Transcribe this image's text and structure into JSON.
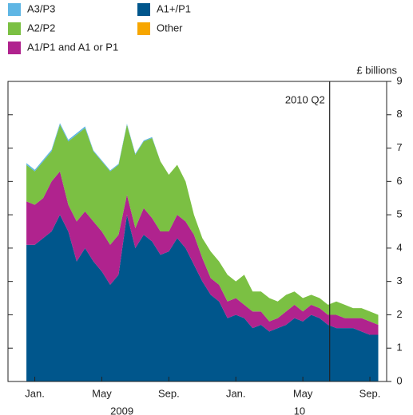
{
  "chart_data": {
    "type": "stacked_area",
    "y_axis_label": "£ billions",
    "x": [
      -0.5,
      0,
      0.5,
      1,
      1.5,
      2,
      2.5,
      3,
      3.5,
      4,
      4.5,
      5,
      5.5,
      6,
      6.5,
      7,
      7.5,
      8,
      8.5,
      9,
      9.5,
      10,
      10.5,
      11,
      11.5,
      12,
      12.5,
      13,
      13.5,
      14,
      14.5,
      15,
      15.5,
      16,
      16.5,
      17,
      17.5,
      18,
      18.5,
      19,
      19.5,
      20,
      20.5
    ],
    "series": [
      {
        "name": "A1+/P1",
        "color": "#00568c",
        "values": [
          4.1,
          4.1,
          4.3,
          4.5,
          5.0,
          4.5,
          3.6,
          4.0,
          3.6,
          3.3,
          2.9,
          3.2,
          5.0,
          4.0,
          4.4,
          4.2,
          3.8,
          3.9,
          4.3,
          4.0,
          3.5,
          3.0,
          2.6,
          2.4,
          1.9,
          2.0,
          1.9,
          1.6,
          1.7,
          1.5,
          1.6,
          1.7,
          1.9,
          1.8,
          2.0,
          1.9,
          1.7,
          1.6,
          1.6,
          1.6,
          1.5,
          1.4,
          1.4
        ]
      },
      {
        "name": "A1/P1 and A1 or P1",
        "color": "#b0238e",
        "values": [
          1.3,
          1.2,
          1.2,
          1.5,
          1.3,
          0.8,
          1.2,
          1.1,
          1.2,
          1.2,
          1.2,
          1.2,
          0.6,
          0.6,
          0.8,
          0.7,
          0.7,
          0.6,
          0.7,
          0.8,
          0.9,
          0.7,
          0.5,
          0.5,
          0.5,
          0.5,
          0.4,
          0.5,
          0.4,
          0.3,
          0.3,
          0.4,
          0.4,
          0.3,
          0.3,
          0.3,
          0.3,
          0.4,
          0.3,
          0.3,
          0.4,
          0.4,
          0.3
        ]
      },
      {
        "name": "A2/P2",
        "color": "#7bc043",
        "values": [
          1.1,
          1.0,
          1.1,
          0.9,
          1.4,
          1.9,
          2.6,
          2.5,
          2.1,
          2.1,
          2.2,
          2.1,
          2.1,
          2.2,
          2.0,
          2.4,
          2.1,
          1.7,
          1.5,
          1.2,
          0.6,
          0.6,
          0.8,
          0.7,
          0.8,
          0.5,
          0.9,
          0.6,
          0.6,
          0.7,
          0.5,
          0.5,
          0.4,
          0.4,
          0.3,
          0.3,
          0.3,
          0.4,
          0.4,
          0.3,
          0.3,
          0.3,
          0.3
        ]
      },
      {
        "name": "A3/P3",
        "color": "#5fb6e4",
        "values": [
          0.05,
          0.05,
          0.05,
          0.05,
          0.05,
          0.05,
          0.05,
          0.05,
          0.03,
          0.03,
          0.03,
          0.03,
          0.03,
          0.03,
          0.03,
          0.03,
          0,
          0,
          0,
          0,
          0,
          0,
          0,
          0,
          0,
          0,
          0,
          0,
          0,
          0,
          0,
          0,
          0,
          0,
          0,
          0,
          0,
          0,
          0,
          0,
          0,
          0,
          0
        ]
      },
      {
        "name": "Other",
        "color": "#f7a600",
        "values": [
          0,
          0,
          0,
          0,
          0,
          0,
          0,
          0,
          0,
          0,
          0,
          0,
          0,
          0,
          0,
          0,
          0,
          0,
          0,
          0,
          0,
          0,
          0,
          0,
          0,
          0,
          0,
          0,
          0,
          0,
          0,
          0,
          0,
          0,
          0,
          0,
          0,
          0,
          0,
          0,
          0,
          0,
          0
        ]
      }
    ],
    "xlim": [
      -1.6,
      21
    ],
    "xticks": [
      {
        "value": 0,
        "label": "Jan."
      },
      {
        "value": 4,
        "label": "May"
      },
      {
        "value": 8,
        "label": "Sep."
      },
      {
        "value": 12,
        "label": "Jan."
      },
      {
        "value": 16,
        "label": "May"
      },
      {
        "value": 20,
        "label": "Sep."
      }
    ],
    "year_labels": [
      {
        "value": 5.2,
        "label": "2009"
      },
      {
        "value": 15.8,
        "label": "10"
      }
    ],
    "ylim": [
      0,
      9
    ],
    "yticks": [
      0,
      1,
      2,
      3,
      4,
      5,
      6,
      7,
      8,
      9
    ],
    "annotations": [
      {
        "text": "2010 Q2",
        "x": 17.6
      }
    ]
  }
}
